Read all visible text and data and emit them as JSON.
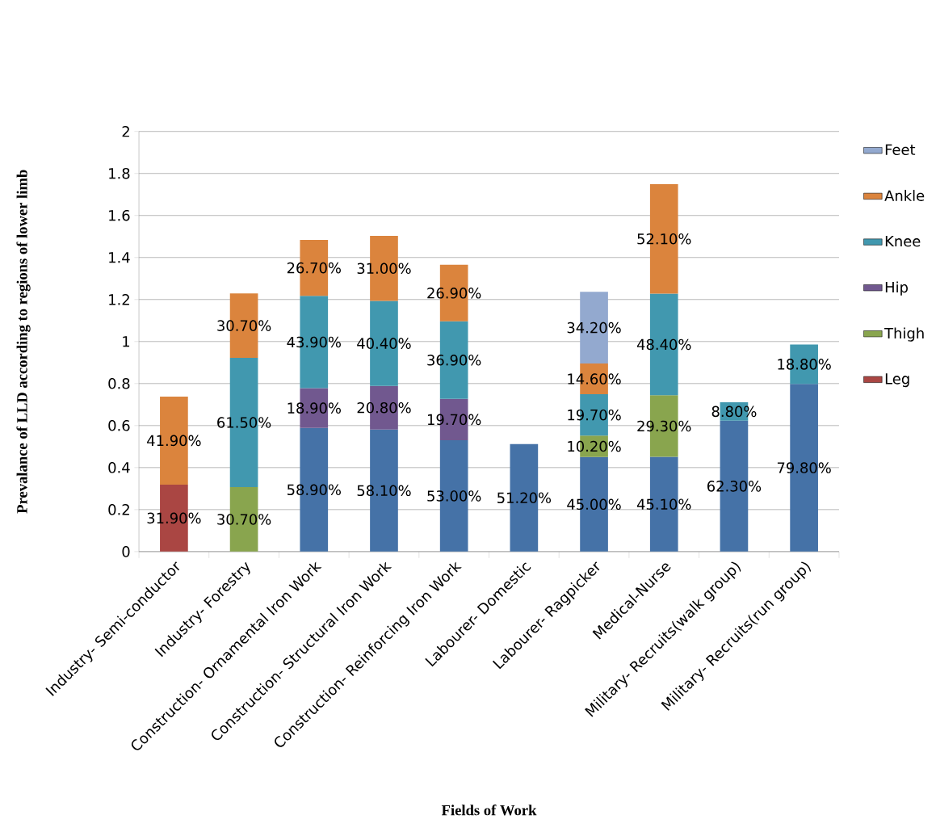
{
  "chart_data": {
    "type": "bar",
    "stacked": true,
    "xlabel": "Fields of Work",
    "ylabel": "Prevalance of LLD according to regions of lower limb",
    "categories": [
      "Industry- Semi-conductor",
      "Industry- Forestry",
      "Construction- Ornamental Iron Work",
      "Construction- Structural Iron Work",
      "Construction- Reinforcing Iron Work",
      "Labourer- Domestic",
      "Labourer- Ragpicker",
      "Medical-Nurse",
      "Military- Recruits(walk group)",
      "Military- Recruits(run group)"
    ],
    "series": [
      {
        "color": "#4572a7",
        "values": [
          null,
          null,
          0.589,
          0.581,
          0.53,
          0.512,
          0.45,
          0.451,
          0.623,
          0.798
        ],
        "value_labels": [
          null,
          null,
          "58.90%",
          "58.10%",
          "53.00%",
          "51.20%",
          "45.00%",
          "45.10%",
          "62.30%",
          "79.80%"
        ]
      },
      {
        "name": "Leg",
        "color": "#aa4643",
        "values": [
          0.319,
          null,
          null,
          null,
          null,
          null,
          null,
          null,
          null,
          null
        ],
        "value_labels": [
          "31.90%",
          null,
          null,
          null,
          null,
          null,
          null,
          null,
          null,
          null
        ]
      },
      {
        "name": "Thigh",
        "color": "#89a54e",
        "values": [
          null,
          0.307,
          null,
          null,
          null,
          null,
          0.102,
          0.293,
          null,
          null
        ],
        "value_labels": [
          null,
          "30.70%",
          null,
          null,
          null,
          null,
          "10.20%",
          "29.30%",
          null,
          null
        ]
      },
      {
        "name": "Hip",
        "color": "#71588f",
        "values": [
          null,
          null,
          0.189,
          0.208,
          0.197,
          null,
          null,
          null,
          null,
          null
        ],
        "value_labels": [
          null,
          null,
          "18.90%",
          "20.80%",
          "19.70%",
          null,
          null,
          null,
          null,
          null
        ]
      },
      {
        "name": "Knee",
        "color": "#4198af",
        "values": [
          null,
          0.615,
          0.439,
          0.404,
          0.369,
          null,
          0.197,
          0.484,
          0.088,
          0.188
        ],
        "value_labels": [
          null,
          "61.50%",
          "43.90%",
          "40.40%",
          "36.90%",
          null,
          "19.70%",
          "48.40%",
          "8.80%",
          "18.80%"
        ]
      },
      {
        "name": "Ankle",
        "color": "#db843d",
        "values": [
          0.419,
          0.307,
          0.267,
          0.31,
          0.269,
          null,
          0.146,
          0.521,
          null,
          null
        ],
        "value_labels": [
          "41.90%",
          "30.70%",
          "26.70%",
          "31.00%",
          "26.90%",
          null,
          "14.60%",
          "52.10%",
          null,
          null
        ]
      },
      {
        "name": "Feet",
        "color": "#93a9cf",
        "values": [
          null,
          null,
          null,
          null,
          null,
          null,
          0.342,
          null,
          null,
          null
        ],
        "value_labels": [
          null,
          null,
          null,
          null,
          null,
          null,
          "34.20%",
          null,
          null,
          null
        ]
      }
    ],
    "ylim": [
      0,
      2
    ],
    "yticks": [
      0,
      0.2,
      0.4,
      0.6,
      0.8,
      1,
      1.2,
      1.4,
      1.6,
      1.8,
      2
    ],
    "grid": "y",
    "legend": "right"
  }
}
